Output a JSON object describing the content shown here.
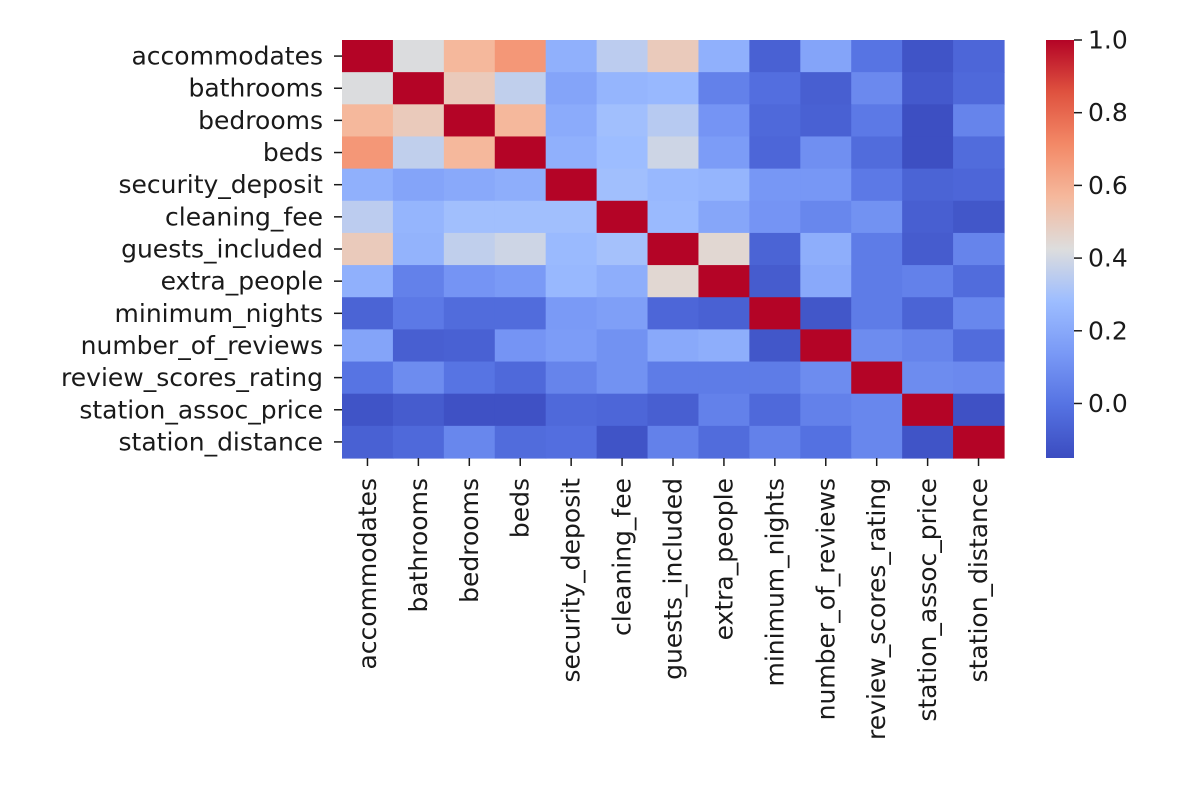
{
  "chart_data": {
    "type": "heatmap",
    "title": "",
    "xlabel": "",
    "ylabel": "",
    "variables": [
      "accommodates",
      "bathrooms",
      "bedrooms",
      "beds",
      "security_deposit",
      "cleaning_fee",
      "guests_included",
      "extra_people",
      "minimum_nights",
      "number_of_reviews",
      "review_scores_rating",
      "station_assoc_price",
      "station_distance"
    ],
    "matrix": [
      [
        1.0,
        0.42,
        0.57,
        0.67,
        0.23,
        0.35,
        0.5,
        0.23,
        -0.07,
        0.18,
        0.0,
        -0.12,
        -0.05
      ],
      [
        0.42,
        1.0,
        0.5,
        0.36,
        0.18,
        0.25,
        0.26,
        0.05,
        -0.02,
        -0.08,
        0.08,
        -0.1,
        -0.04
      ],
      [
        0.57,
        0.5,
        1.0,
        0.57,
        0.21,
        0.29,
        0.34,
        0.12,
        -0.04,
        -0.07,
        0.02,
        -0.14,
        0.06
      ],
      [
        0.67,
        0.36,
        0.57,
        1.0,
        0.23,
        0.28,
        0.39,
        0.15,
        -0.05,
        0.1,
        -0.03,
        -0.14,
        -0.03
      ],
      [
        0.23,
        0.18,
        0.2,
        0.22,
        1.0,
        0.29,
        0.26,
        0.25,
        0.13,
        0.13,
        0.02,
        -0.06,
        -0.05
      ],
      [
        0.35,
        0.25,
        0.29,
        0.29,
        0.29,
        1.0,
        0.27,
        0.19,
        0.12,
        0.07,
        0.11,
        -0.08,
        -0.11
      ],
      [
        0.5,
        0.24,
        0.36,
        0.39,
        0.27,
        0.3,
        1.0,
        0.45,
        -0.06,
        0.22,
        0.03,
        -0.09,
        0.06
      ],
      [
        0.23,
        0.05,
        0.12,
        0.14,
        0.26,
        0.22,
        0.45,
        1.0,
        -0.09,
        0.2,
        0.03,
        0.05,
        -0.03
      ],
      [
        -0.06,
        0.02,
        -0.03,
        -0.03,
        0.14,
        0.16,
        -0.05,
        -0.07,
        1.0,
        -0.11,
        0.03,
        -0.06,
        0.07
      ],
      [
        0.18,
        -0.08,
        -0.07,
        0.12,
        0.15,
        0.11,
        0.2,
        0.22,
        -0.11,
        1.0,
        0.09,
        0.06,
        -0.03
      ],
      [
        0.0,
        0.09,
        0.0,
        -0.04,
        0.06,
        0.11,
        0.03,
        0.03,
        0.03,
        0.09,
        1.0,
        0.09,
        0.08
      ],
      [
        -0.12,
        -0.09,
        -0.13,
        -0.13,
        -0.04,
        -0.05,
        -0.08,
        0.05,
        -0.04,
        0.05,
        0.07,
        1.0,
        -0.13
      ],
      [
        -0.07,
        -0.04,
        0.07,
        -0.03,
        -0.02,
        -0.12,
        0.05,
        -0.03,
        0.05,
        -0.01,
        0.07,
        -0.12,
        1.0
      ]
    ],
    "colormap": "coolwarm",
    "colorbar": {
      "vmin": -0.15,
      "vmax": 1.0,
      "ticks": [
        "0.0",
        "0.2",
        "0.4",
        "0.6",
        "0.8",
        "1.0"
      ]
    },
    "grid": false,
    "legend": "colorbar-right"
  }
}
